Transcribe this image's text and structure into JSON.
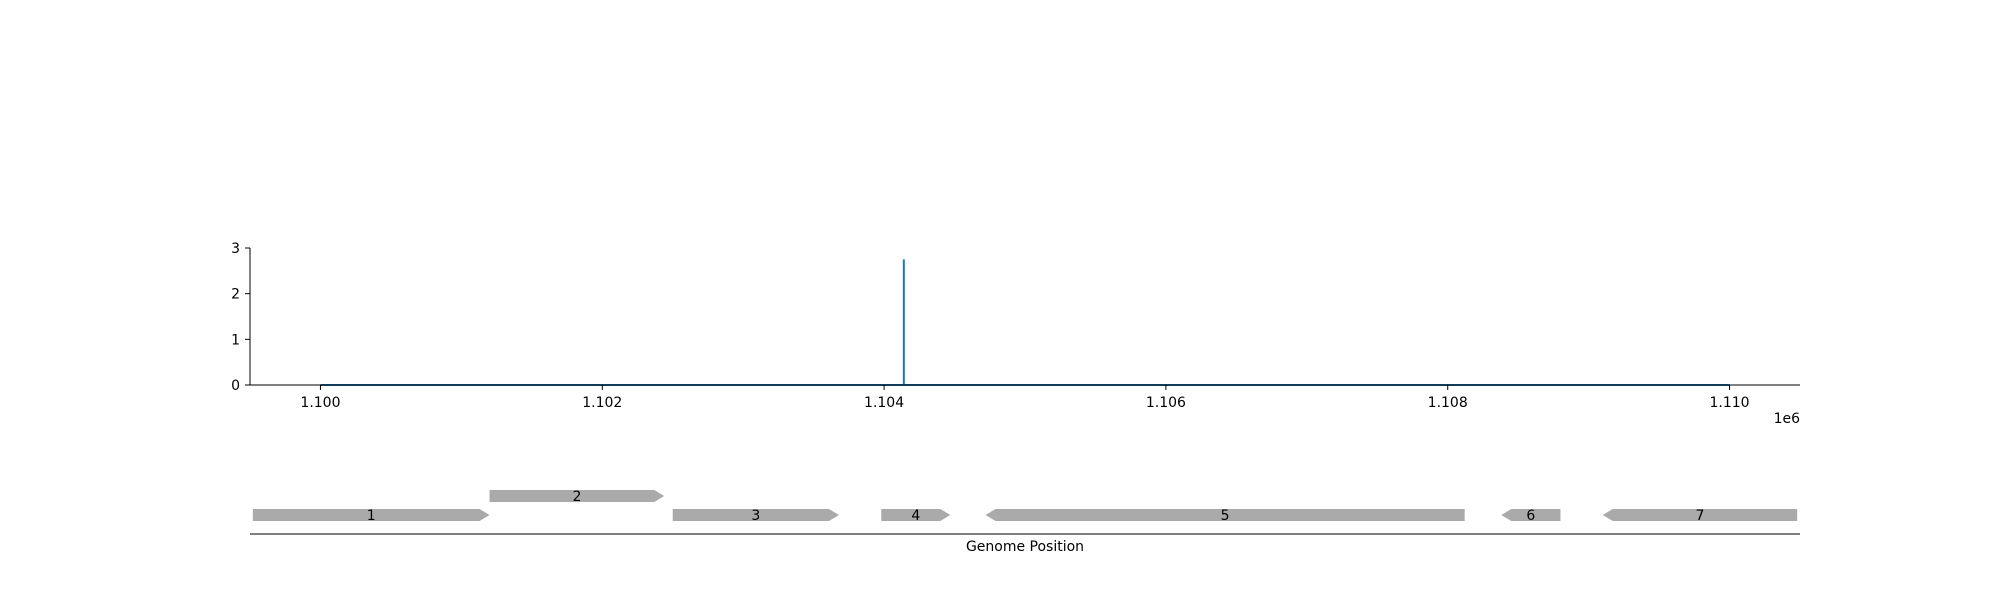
{
  "chart_data": [
    {
      "type": "line",
      "title": "",
      "xlabel": "",
      "ylabel": "",
      "xlim": [
        1099500,
        1110500
      ],
      "ylim": [
        0,
        3
      ],
      "x_offset_label": "1e6",
      "x_ticks": [
        1100000,
        1102000,
        1104000,
        1106000,
        1108000,
        1110000
      ],
      "x_tick_labels": [
        "1.100",
        "1.102",
        "1.104",
        "1.106",
        "1.108",
        "1.110"
      ],
      "y_ticks": [
        0,
        1,
        2,
        3
      ],
      "y_tick_labels": [
        "0",
        "1",
        "2",
        "3"
      ],
      "grid": false,
      "series": [
        {
          "color": "#1f77b4",
          "x": [
            1100000,
            1104140,
            1104140,
            1104140,
            1110000
          ],
          "y": [
            0,
            0,
            2.75,
            0,
            0
          ]
        }
      ]
    },
    {
      "type": "gene-track",
      "xlabel": "Genome Position",
      "xlim": [
        1099500,
        1110500
      ],
      "gene_color": "#aaaaaa",
      "genes": [
        {
          "label": "1",
          "start": 1099520,
          "end": 1101200,
          "strand": 1,
          "row": 0
        },
        {
          "label": "2",
          "start": 1101200,
          "end": 1102440,
          "strand": 1,
          "row": 1
        },
        {
          "label": "3",
          "start": 1102500,
          "end": 1103680,
          "strand": 1,
          "row": 0
        },
        {
          "label": "4",
          "start": 1103980,
          "end": 1104470,
          "strand": 1,
          "row": 0
        },
        {
          "label": "5",
          "start": 1104720,
          "end": 1108120,
          "strand": -1,
          "row": 0
        },
        {
          "label": "6",
          "start": 1108380,
          "end": 1108800,
          "strand": -1,
          "row": 0
        },
        {
          "label": "7",
          "start": 1109100,
          "end": 1110480,
          "strand": -1,
          "row": 0
        }
      ]
    }
  ]
}
